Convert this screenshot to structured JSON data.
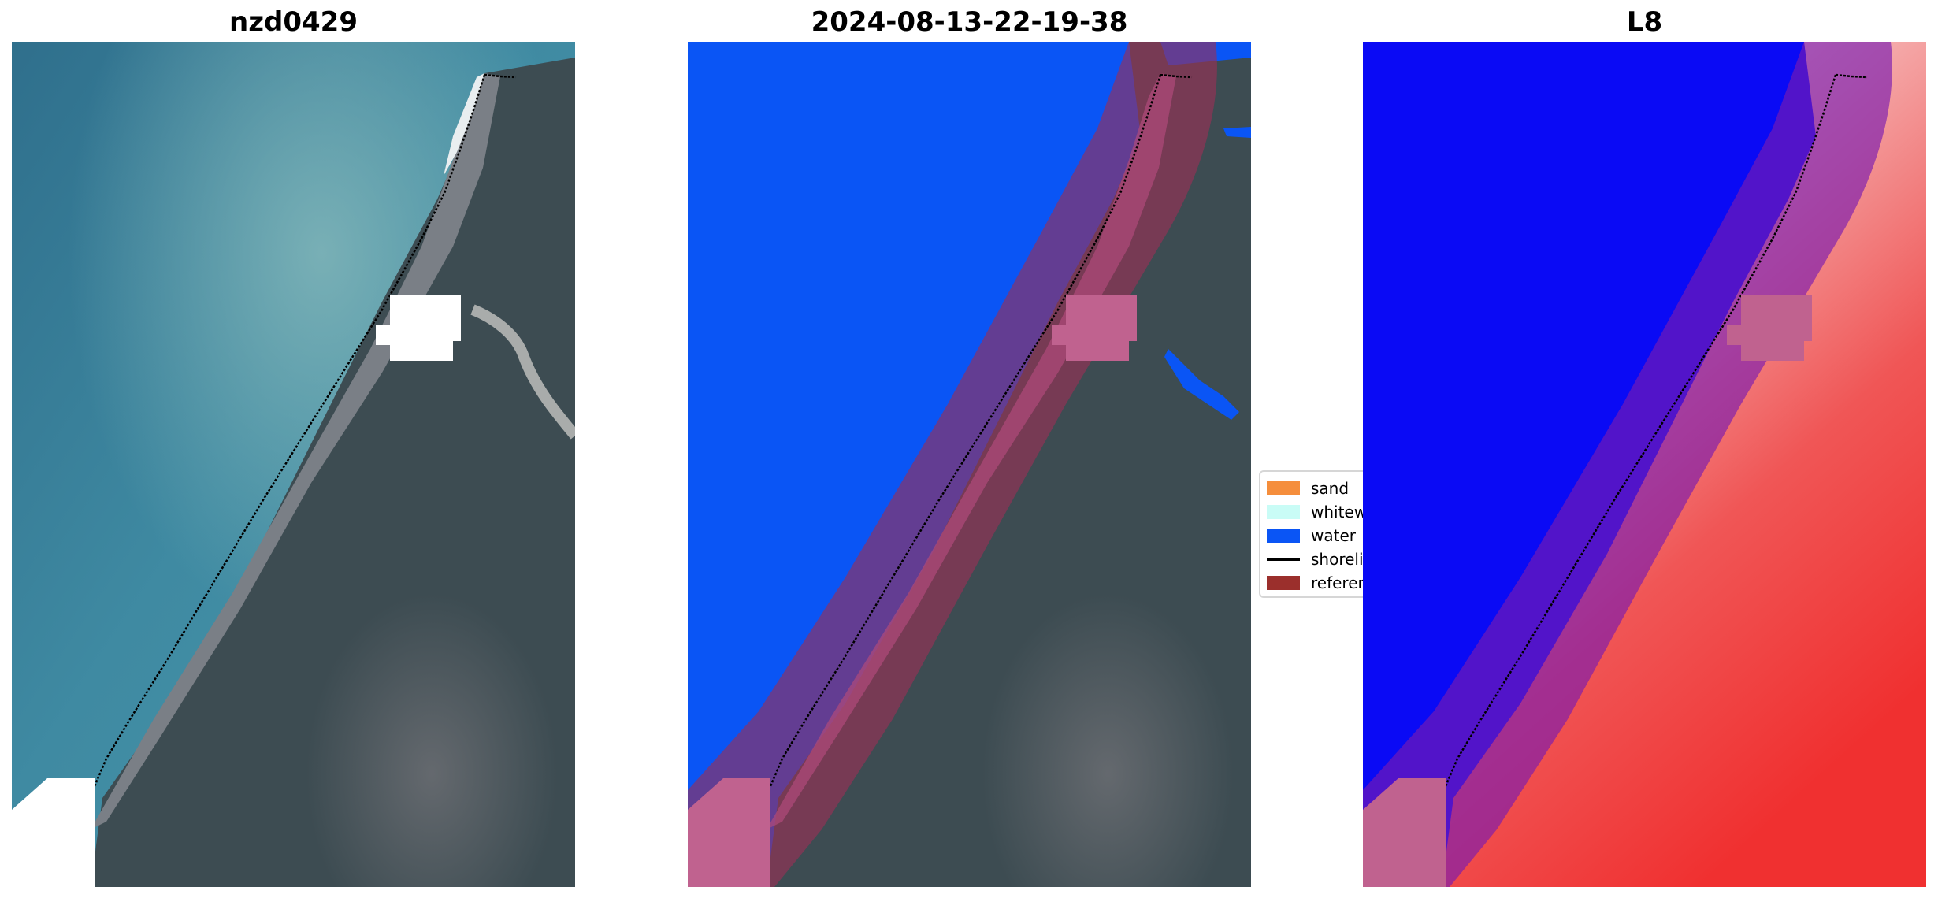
{
  "panels": [
    {
      "title": "nzd0429"
    },
    {
      "title": "2024-08-13-22-19-38"
    },
    {
      "title": "L8"
    }
  ],
  "legend": {
    "items": [
      {
        "label": "sand",
        "color": "#f58e3c",
        "type": "patch"
      },
      {
        "label": "whitewater",
        "color": "#c9fcf6",
        "type": "patch"
      },
      {
        "label": "water",
        "color": "#0a55f5",
        "type": "patch"
      },
      {
        "label": "shoreline",
        "color": "#000000",
        "type": "line"
      },
      {
        "label": "reference shoreline buffer",
        "color": "#9b2f2c",
        "type": "patch"
      }
    ]
  },
  "colors": {
    "sea": "#3c7f99",
    "land": "#3f4f56",
    "beach": "#6f7682",
    "classified_water": "#0a55f5",
    "index_water": "#0a0af5",
    "index_land": "#f23a3a",
    "buffer_overlay": "#9b2f55",
    "mask": "#ffffff"
  }
}
